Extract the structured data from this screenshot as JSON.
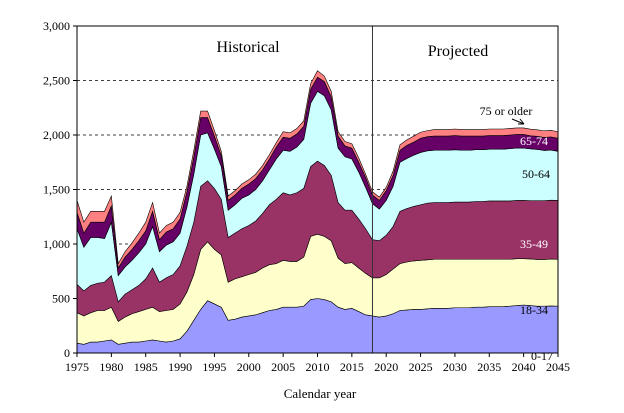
{
  "chart_data": {
    "type": "area",
    "stacked": true,
    "title": "",
    "xlabel": "Calendar year",
    "ylabel": "",
    "xlim": [
      1975,
      2045
    ],
    "ylim": [
      0,
      3000
    ],
    "x_ticks": [
      1975,
      1980,
      1985,
      1990,
      1995,
      2000,
      2005,
      2010,
      2015,
      2020,
      2025,
      2030,
      2035,
      2040,
      2045
    ],
    "x_tick_labels": [
      "1975",
      "1980",
      "1985",
      "1990",
      "1995",
      "2000",
      "2005",
      "2010",
      "2015",
      "2020",
      "2025",
      "2030",
      "2035",
      "2040",
      "2045"
    ],
    "y_ticks": [
      0,
      500,
      1000,
      1500,
      2000,
      2500,
      3000
    ],
    "y_tick_labels": [
      "0",
      "500",
      "1,000",
      "1,500",
      "2,000",
      "2,500",
      "3,000"
    ],
    "grid": {
      "y": true,
      "x": false,
      "style": "dashed"
    },
    "x": [
      1975,
      1976,
      1977,
      1978,
      1979,
      1980,
      1981,
      1982,
      1983,
      1984,
      1985,
      1986,
      1987,
      1988,
      1989,
      1990,
      1991,
      1992,
      1993,
      1994,
      1995,
      1996,
      1997,
      1998,
      1999,
      2000,
      2001,
      2002,
      2003,
      2004,
      2005,
      2006,
      2007,
      2008,
      2009,
      2010,
      2011,
      2012,
      2013,
      2014,
      2015,
      2016,
      2017,
      2018,
      2019,
      2020,
      2021,
      2022,
      2023,
      2024,
      2025,
      2026,
      2027,
      2028,
      2029,
      2030,
      2031,
      2032,
      2033,
      2034,
      2035,
      2036,
      2037,
      2038,
      2039,
      2040,
      2041,
      2042,
      2043,
      2044,
      2045
    ],
    "series": [
      {
        "name": "0-17",
        "color": "#9999ff",
        "values": [
          90,
          80,
          100,
          100,
          110,
          120,
          80,
          90,
          100,
          100,
          110,
          120,
          110,
          100,
          110,
          130,
          200,
          300,
          400,
          480,
          450,
          420,
          300,
          310,
          330,
          340,
          350,
          370,
          390,
          400,
          420,
          420,
          420,
          430,
          490,
          500,
          490,
          470,
          420,
          400,
          410,
          380,
          350,
          340,
          330,
          340,
          360,
          390,
          395,
          400,
          400,
          405,
          410,
          410,
          410,
          415,
          415,
          415,
          420,
          420,
          425,
          425,
          425,
          430,
          435,
          440,
          435,
          430,
          430,
          432,
          430
        ]
      },
      {
        "name": "18-34",
        "color": "#ffffcc",
        "values": [
          280,
          260,
          270,
          290,
          280,
          300,
          210,
          240,
          260,
          280,
          290,
          300,
          270,
          290,
          290,
          320,
          360,
          420,
          550,
          540,
          500,
          480,
          350,
          370,
          370,
          380,
          390,
          410,
          420,
          420,
          430,
          420,
          420,
          450,
          580,
          590,
          580,
          560,
          450,
          420,
          420,
          400,
          380,
          350,
          360,
          380,
          410,
          430,
          440,
          445,
          450,
          450,
          450,
          450,
          450,
          445,
          445,
          445,
          440,
          440,
          435,
          435,
          435,
          430,
          430,
          425,
          428,
          428,
          428,
          430,
          430
        ]
      },
      {
        "name": "35-49",
        "color": "#993366",
        "values": [
          260,
          230,
          250,
          250,
          260,
          290,
          180,
          210,
          220,
          240,
          280,
          360,
          270,
          300,
          320,
          350,
          420,
          480,
          580,
          560,
          560,
          510,
          410,
          420,
          440,
          450,
          470,
          500,
          550,
          590,
          620,
          610,
          630,
          630,
          640,
          670,
          650,
          600,
          510,
          490,
          480,
          450,
          410,
          350,
          340,
          360,
          390,
          480,
          490,
          500,
          510,
          520,
          520,
          520,
          520,
          525,
          525,
          525,
          530,
          530,
          535,
          535,
          535,
          535,
          535,
          535,
          535,
          540,
          540,
          540,
          540
        ]
      },
      {
        "name": "50-64",
        "color": "#ccffff",
        "values": [
          510,
          400,
          440,
          420,
          400,
          490,
          240,
          250,
          270,
          300,
          320,
          380,
          280,
          300,
          300,
          300,
          360,
          440,
          470,
          440,
          360,
          300,
          250,
          260,
          280,
          280,
          290,
          300,
          320,
          370,
          390,
          400,
          420,
          450,
          580,
          640,
          640,
          600,
          500,
          490,
          470,
          430,
          380,
          330,
          290,
          320,
          370,
          450,
          460,
          470,
          480,
          480,
          480,
          480,
          480,
          480,
          475,
          475,
          475,
          475,
          475,
          475,
          475,
          480,
          480,
          480,
          475,
          470,
          460,
          460,
          450
        ]
      },
      {
        "name": "65-74",
        "color": "#660066",
        "values": [
          150,
          130,
          140,
          140,
          150,
          150,
          70,
          90,
          100,
          110,
          120,
          140,
          110,
          120,
          120,
          130,
          140,
          160,
          160,
          140,
          120,
          100,
          90,
          90,
          90,
          100,
          100,
          100,
          100,
          110,
          120,
          120,
          120,
          120,
          130,
          130,
          130,
          120,
          110,
          100,
          100,
          90,
          90,
          80,
          80,
          90,
          100,
          110,
          120,
          120,
          130,
          130,
          130,
          130,
          130,
          130,
          130,
          130,
          125,
          125,
          125,
          125,
          125,
          125,
          125,
          125,
          120,
          120,
          120,
          120,
          120
        ]
      },
      {
        "name": "75 or older",
        "color": "#ff8080",
        "values": [
          110,
          100,
          100,
          100,
          100,
          90,
          40,
          50,
          60,
          70,
          80,
          80,
          60,
          60,
          60,
          60,
          50,
          60,
          60,
          60,
          50,
          40,
          40,
          40,
          40,
          40,
          40,
          40,
          40,
          40,
          50,
          50,
          50,
          50,
          50,
          60,
          50,
          50,
          40,
          40,
          40,
          40,
          30,
          30,
          30,
          30,
          40,
          50,
          50,
          55,
          55,
          55,
          60,
          60,
          60,
          60,
          60,
          60,
          60,
          60,
          60,
          60,
          60,
          60,
          60,
          60,
          60,
          60,
          60,
          60,
          60
        ]
      }
    ],
    "divider_x": 2018,
    "annotations": {
      "historical": "Historical",
      "projected": "Projected"
    }
  }
}
